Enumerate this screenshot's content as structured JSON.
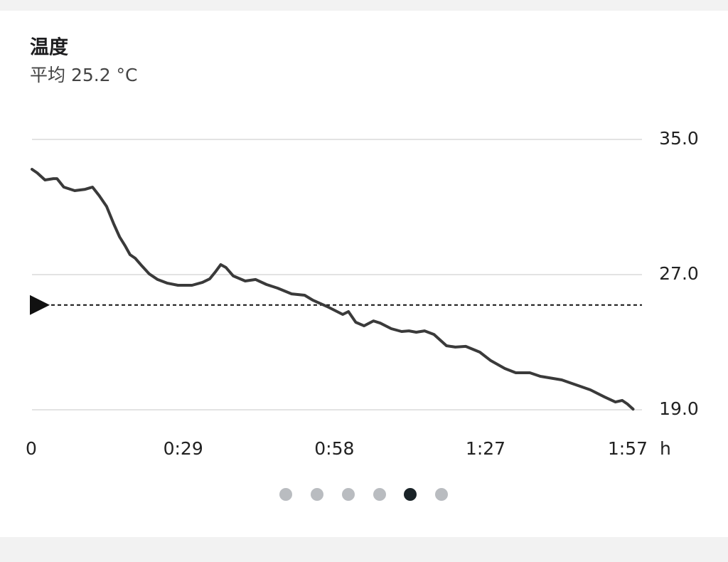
{
  "chart_data": {
    "type": "line",
    "title": "温度",
    "subtitle": "平均 25.2 °C",
    "x_label": "h",
    "color": "#3a3a3a",
    "grid": true,
    "average_line": 25.2,
    "x": [
      0,
      1,
      2.5,
      4.1,
      4.8,
      6.1,
      8.2,
      10.2,
      11.6,
      12.9,
      14.3,
      15.7,
      16.8,
      17.9,
      18.8,
      19.8,
      21.1,
      22.5,
      24.1,
      25.9,
      28.0,
      30.7,
      32.7,
      34.1,
      35.2,
      36.2,
      37.2,
      38.6,
      40.9,
      42.9,
      45.0,
      47.1,
      49.8,
      52.3,
      53.9,
      56.6,
      59.6,
      60.7,
      62.1,
      63.7,
      65.5,
      66.8,
      68.9,
      70.9,
      72.3,
      73.7,
      75.3,
      77.1,
      79.5,
      81.2,
      83.2,
      85.9,
      88.0,
      90.7,
      92.8,
      95.5,
      97.5,
      101.6,
      104.4,
      107.1,
      109.8,
      111.9,
      113.2,
      114.2,
      115.3
    ],
    "values": [
      33.23,
      33.02,
      32.6,
      32.68,
      32.68,
      32.18,
      31.97,
      32.05,
      32.18,
      31.67,
      31.04,
      29.99,
      29.23,
      28.68,
      28.18,
      27.97,
      27.51,
      27.04,
      26.71,
      26.5,
      26.37,
      26.37,
      26.54,
      26.75,
      27.17,
      27.59,
      27.42,
      26.92,
      26.62,
      26.71,
      26.41,
      26.2,
      25.86,
      25.78,
      25.48,
      25.11,
      24.64,
      24.81,
      24.18,
      23.97,
      24.26,
      24.13,
      23.8,
      23.63,
      23.67,
      23.59,
      23.67,
      23.46,
      22.79,
      22.71,
      22.75,
      22.41,
      21.91,
      21.44,
      21.19,
      21.19,
      20.98,
      20.77,
      20.47,
      20.18,
      19.76,
      19.46,
      19.55,
      19.34,
      19.04
    ],
    "xlim": [
      0,
      117
    ],
    "ylim": [
      19,
      35
    ],
    "xticks": [
      0,
      {
        "value": 29,
        "label": "0:29"
      },
      {
        "value": 58,
        "label": "0:58"
      },
      {
        "value": 87,
        "label": "1:27"
      },
      {
        "value": 117,
        "label": "1:57"
      }
    ],
    "yticks": [
      {
        "value": 19,
        "label": "19.0"
      },
      {
        "value": 27,
        "label": "27.0"
      },
      {
        "value": 35,
        "label": "35.0"
      }
    ]
  }
}
